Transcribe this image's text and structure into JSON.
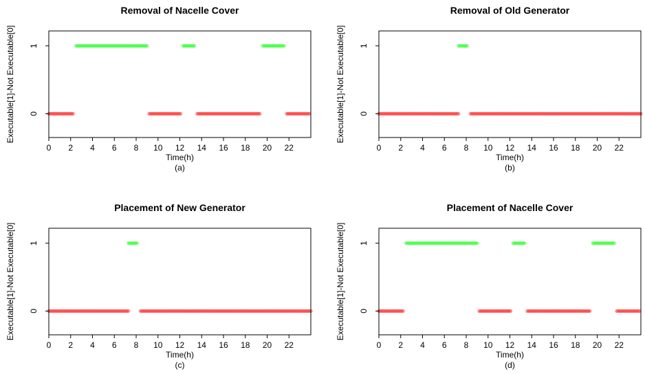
{
  "colors": {
    "executable": "#33ff33",
    "not_executable": "#ff3333",
    "axis": "#000000"
  },
  "chart_data": [
    {
      "type": "scatter",
      "title": "Removal of Nacelle Cover",
      "caption": "(a)",
      "xlabel": "Time(h)",
      "ylabel": "Executable[1]-Not Executable[0]",
      "xlim": [
        0,
        24
      ],
      "ylim": [
        -0.35,
        1.22
      ],
      "xticks": [
        0,
        2,
        4,
        6,
        8,
        10,
        12,
        14,
        16,
        18,
        20,
        22
      ],
      "yticks": [
        0,
        1
      ],
      "grid": false,
      "series": [
        {
          "value": 1,
          "color": "#33ff33",
          "segments": [
            [
              2.5,
              9.0
            ],
            [
              12.3,
              13.4
            ],
            [
              19.6,
              21.6
            ]
          ]
        },
        {
          "value": 0,
          "color": "#ff3333",
          "segments": [
            [
              0.0,
              2.3
            ],
            [
              9.2,
              12.1
            ],
            [
              13.6,
              19.4
            ],
            [
              21.8,
              24.0
            ]
          ]
        }
      ]
    },
    {
      "type": "scatter",
      "title": "Removal of Old Generator",
      "caption": "(b)",
      "xlabel": "Time(h)",
      "ylabel": "Executable[1]-Not Executable[0]",
      "xlim": [
        0,
        24
      ],
      "ylim": [
        -0.35,
        1.22
      ],
      "xticks": [
        0,
        2,
        4,
        6,
        8,
        10,
        12,
        14,
        16,
        18,
        20,
        22
      ],
      "yticks": [
        0,
        1
      ],
      "grid": false,
      "series": [
        {
          "value": 1,
          "color": "#33ff33",
          "segments": [
            [
              7.3,
              8.2
            ]
          ]
        },
        {
          "value": 0,
          "color": "#ff3333",
          "segments": [
            [
              0.0,
              7.3
            ],
            [
              8.4,
              24.0
            ]
          ]
        }
      ]
    },
    {
      "type": "scatter",
      "title": "Placement of New Generator",
      "caption": "(c)",
      "xlabel": "Time(h)",
      "ylabel": "Executable[1]-Not Executable[0]",
      "xlim": [
        0,
        24
      ],
      "ylim": [
        -0.35,
        1.22
      ],
      "xticks": [
        0,
        2,
        4,
        6,
        8,
        10,
        12,
        14,
        16,
        18,
        20,
        22
      ],
      "yticks": [
        0,
        1
      ],
      "grid": false,
      "series": [
        {
          "value": 1,
          "color": "#33ff33",
          "segments": [
            [
              7.3,
              8.2
            ]
          ]
        },
        {
          "value": 0,
          "color": "#ff3333",
          "segments": [
            [
              0.0,
              7.3
            ],
            [
              8.4,
              24.0
            ]
          ]
        }
      ]
    },
    {
      "type": "scatter",
      "title": "Placement of Nacelle Cover",
      "caption": "(d)",
      "xlabel": "Time(h)",
      "ylabel": "Executable[1]-Not Executable[0]",
      "xlim": [
        0,
        24
      ],
      "ylim": [
        -0.35,
        1.22
      ],
      "xticks": [
        0,
        2,
        4,
        6,
        8,
        10,
        12,
        14,
        16,
        18,
        20,
        22
      ],
      "yticks": [
        0,
        1
      ],
      "grid": false,
      "series": [
        {
          "value": 1,
          "color": "#33ff33",
          "segments": [
            [
              2.5,
              9.0
            ],
            [
              12.3,
              13.4
            ],
            [
              19.6,
              21.6
            ]
          ]
        },
        {
          "value": 0,
          "color": "#ff3333",
          "segments": [
            [
              0.0,
              2.3
            ],
            [
              9.2,
              12.1
            ],
            [
              13.6,
              19.4
            ],
            [
              21.8,
              24.0
            ]
          ]
        }
      ]
    }
  ]
}
